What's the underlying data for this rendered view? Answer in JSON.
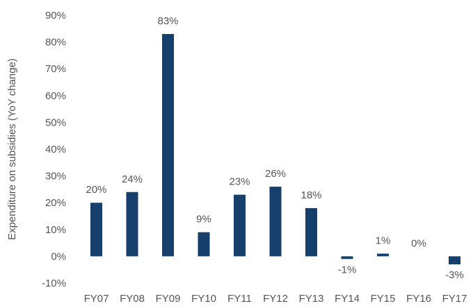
{
  "chart_data": {
    "type": "bar",
    "title": "",
    "xlabel": "",
    "ylabel": "Expenditure on subsidies (YoY change)",
    "categories": [
      "FY07",
      "FY08",
      "FY09",
      "FY10",
      "FY11",
      "FY12",
      "FY13",
      "FY14",
      "FY15",
      "FY16",
      "FY17"
    ],
    "values": [
      20,
      24,
      83,
      9,
      23,
      26,
      18,
      -1,
      1,
      0,
      -3
    ],
    "data_labels": [
      "20%",
      "24%",
      "83%",
      "9%",
      "23%",
      "26%",
      "18%",
      "-1%",
      "1%",
      "0%",
      "-3%"
    ],
    "ylim": [
      -10,
      90
    ],
    "yticks": [
      -10,
      0,
      10,
      20,
      30,
      40,
      50,
      60,
      70,
      80,
      90
    ],
    "ytick_labels": [
      "-10%",
      "0%",
      "10%",
      "20%",
      "30%",
      "40%",
      "50%",
      "60%",
      "70%",
      "80%",
      "90%"
    ],
    "bar_color": "#163f6b",
    "grid": false,
    "legend": "none"
  }
}
